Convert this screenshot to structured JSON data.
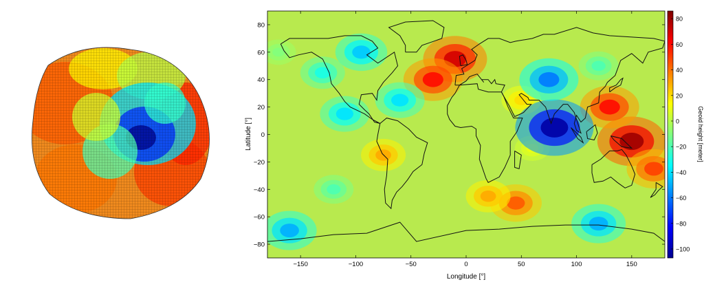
{
  "chart_data": [
    {
      "type": "3d-surface",
      "title": "",
      "description_colormap": "jet",
      "color_low": "#0000b4",
      "color_high": "#c80000"
    },
    {
      "type": "heatmap",
      "title": "",
      "xlabel": "Longitude [°]",
      "ylabel": "Latitude [°]",
      "xlim": [
        -180,
        180
      ],
      "ylim": [
        -90,
        90
      ],
      "xticks": [
        -150,
        -100,
        -50,
        0,
        50,
        100,
        150
      ],
      "yticks": [
        -80,
        -60,
        -40,
        -20,
        0,
        20,
        40,
        60,
        80
      ],
      "colorbar": {
        "label": "Geoid height [meter]",
        "range": [
          -107,
          86
        ],
        "ticks": [
          80,
          60,
          40,
          20,
          0,
          -20,
          -40,
          -60,
          -80,
          -100
        ]
      },
      "colormap": "jet",
      "anomalies": [
        {
          "lon": -10,
          "lat": 55,
          "value": 70
        },
        {
          "lon": -30,
          "lat": 40,
          "value": 60
        },
        {
          "lon": 150,
          "lat": -5,
          "value": 80
        },
        {
          "lon": 130,
          "lat": 20,
          "value": 60
        },
        {
          "lon": 170,
          "lat": -25,
          "value": 50
        },
        {
          "lon": 45,
          "lat": -50,
          "value": 45
        },
        {
          "lon": 20,
          "lat": -45,
          "value": 30
        },
        {
          "lon": -75,
          "lat": -15,
          "value": 30
        },
        {
          "lon": 50,
          "lat": 25,
          "value": 20
        },
        {
          "lon": 60,
          "lat": -10,
          "value": 10
        },
        {
          "lon": 80,
          "lat": 5,
          "value": -100
        },
        {
          "lon": 75,
          "lat": 40,
          "value": -60
        },
        {
          "lon": -95,
          "lat": 60,
          "value": -45
        },
        {
          "lon": -60,
          "lat": 25,
          "value": -40
        },
        {
          "lon": -110,
          "lat": 15,
          "value": -40
        },
        {
          "lon": -170,
          "lat": 60,
          "value": -10
        },
        {
          "lon": -130,
          "lat": 45,
          "value": -30
        },
        {
          "lon": -160,
          "lat": -70,
          "value": -50
        },
        {
          "lon": 120,
          "lat": -65,
          "value": -50
        },
        {
          "lon": -120,
          "lat": -40,
          "value": -20
        },
        {
          "lon": 120,
          "lat": 50,
          "value": -20
        }
      ]
    }
  ]
}
